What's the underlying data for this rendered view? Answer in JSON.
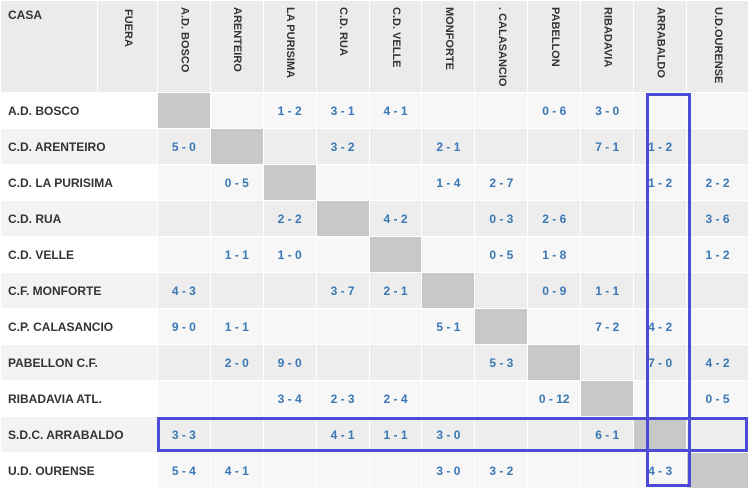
{
  "corner": {
    "row_header": "CASA",
    "col_header": "FUERA"
  },
  "columns": [
    "A.D. BOSCO",
    "ARENTEIRO",
    "LA PURISIMA",
    "C.D. RUA",
    "C.D. VELLE",
    "MONFORTE",
    ". CALASANCIO",
    "PABELLON",
    "RIBADAVIA",
    "ARRABALDO",
    "U.D.OURENSE"
  ],
  "rows": [
    {
      "team": "A.D. BOSCO",
      "scores": [
        "",
        "",
        "1 - 2",
        "3 - 1",
        "4 - 1",
        "",
        "",
        "0 - 6",
        "3 - 0",
        "",
        ""
      ]
    },
    {
      "team": "C.D. ARENTEIRO",
      "scores": [
        "5 - 0",
        "",
        "",
        "3 - 2",
        "",
        "2 - 1",
        "",
        "",
        "7 - 1",
        "1 - 2",
        ""
      ]
    },
    {
      "team": "C.D. LA PURISIMA",
      "scores": [
        "",
        "0 - 5",
        "",
        "",
        "",
        "1 - 4",
        "2 - 7",
        "",
        "",
        "1 - 2",
        "2 - 2"
      ]
    },
    {
      "team": "C.D. RUA",
      "scores": [
        "",
        "",
        "2 - 2",
        "",
        "4 - 2",
        "",
        "0 - 3",
        "2 - 6",
        "",
        "",
        "3 - 6"
      ]
    },
    {
      "team": "C.D. VELLE",
      "scores": [
        "",
        "1 - 1",
        "1 - 0",
        "",
        "",
        "",
        "0 - 5",
        "1 - 8",
        "",
        "",
        "1 - 2"
      ]
    },
    {
      "team": "C.F. MONFORTE",
      "scores": [
        "4 - 3",
        "",
        "",
        "3 - 7",
        "2 - 1",
        "",
        "",
        "0 - 9",
        "1 - 1",
        "",
        ""
      ]
    },
    {
      "team": "C.P. CALASANCIO",
      "scores": [
        "9 - 0",
        "1 - 1",
        "",
        "",
        "",
        "5 - 1",
        "",
        "",
        "7 - 2",
        "4 - 2",
        ""
      ]
    },
    {
      "team": "PABELLON C.F.",
      "scores": [
        "",
        "2 - 0",
        "9 - 0",
        "",
        "",
        "",
        "5 - 3",
        "",
        "",
        "7 - 0",
        "4 - 2"
      ]
    },
    {
      "team": "RIBADAVIA ATL.",
      "scores": [
        "",
        "",
        "3 - 4",
        "2 - 3",
        "2 - 4",
        "",
        "",
        "0 - 12",
        "",
        "",
        "0 - 5"
      ]
    },
    {
      "team": "S.D.C. ARRABALDO",
      "scores": [
        "3 - 3",
        "",
        "",
        "4 - 1",
        "1 - 1",
        "3 - 0",
        "",
        "",
        "6 - 1",
        "",
        ""
      ]
    },
    {
      "team": "U.D. OURENSE",
      "scores": [
        "5 - 4",
        "4 - 1",
        "",
        "",
        "",
        "3 - 0",
        "3 - 2",
        "",
        "",
        "4 - 3",
        ""
      ]
    }
  ],
  "colors": {
    "score_text": "#3a78b5",
    "diagonal": "#c8c8c8",
    "highlight": "#4b4bd6"
  },
  "highlight": {
    "team": "S.D.C. ARRABALDO"
  }
}
